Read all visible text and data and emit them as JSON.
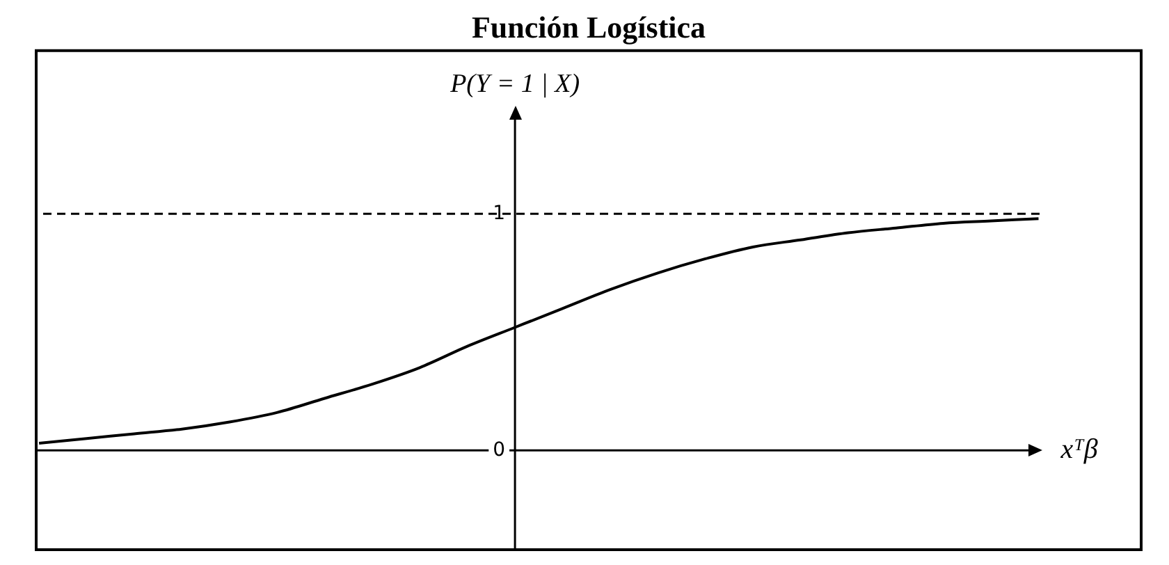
{
  "chart_data": {
    "type": "line",
    "title": "Función Logística",
    "xlabel": "xᵀβ",
    "ylabel": "P(Y = 1 | X)",
    "categories": [
      null,
      null,
      null,
      null,
      null,
      null,
      null,
      null,
      null,
      null,
      null,
      null,
      null,
      null,
      null,
      null,
      null,
      null,
      null,
      null,
      null,
      null
    ],
    "series": [
      {
        "color": "#000000",
        "values": [
          0.03,
          0.05,
          0.07,
          0.09,
          0.12,
          0.16,
          0.22,
          0.28,
          0.35,
          0.44,
          0.52,
          0.6,
          0.68,
          0.75,
          0.81,
          0.86,
          0.89,
          0.92,
          0.94,
          0.96,
          0.97,
          0.98
        ]
      }
    ],
    "ylim": [
      -0.42,
      1.69
    ],
    "yticks": [
      0,
      1
    ],
    "ref_lines": [
      {
        "axis": "y",
        "value": 1,
        "color": "#000000",
        "line_style": "dashed"
      }
    ],
    "marker": "none",
    "line_style": "solid"
  }
}
